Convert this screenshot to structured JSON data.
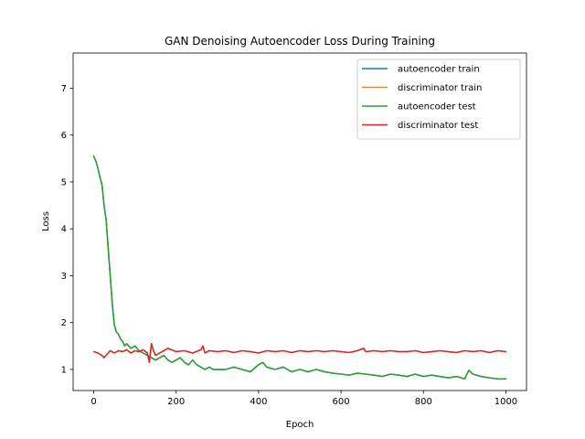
{
  "chart_data": {
    "type": "line",
    "title": "GAN Denoising Autoencoder Loss During Training",
    "xlabel": "Epoch",
    "ylabel": "Loss",
    "xlim": [
      -50,
      1050
    ],
    "ylim": [
      0.55,
      7.75
    ],
    "xticks": [
      0,
      200,
      400,
      600,
      800,
      1000
    ],
    "yticks": [
      1,
      2,
      3,
      4,
      5,
      6,
      7
    ],
    "grid": false,
    "legend_position": "top-right",
    "series": [
      {
        "name": "autoencoder train",
        "color": "#1f77b4",
        "x": [
          0,
          5,
          10,
          15,
          20,
          25,
          30,
          35,
          40,
          45,
          50,
          55,
          60,
          65,
          70,
          75,
          80,
          90,
          100,
          110,
          120,
          130,
          140,
          150,
          160,
          170,
          180,
          190,
          200,
          210,
          220,
          230,
          240,
          250,
          260,
          270,
          280,
          290,
          300,
          320,
          340,
          360,
          380,
          400,
          410,
          420,
          440,
          460,
          480,
          500,
          520,
          540,
          560,
          580,
          600,
          620,
          640,
          660,
          680,
          700,
          720,
          740,
          760,
          780,
          800,
          820,
          840,
          860,
          880,
          900,
          910,
          920,
          940,
          960,
          980,
          1000
        ],
        "y": [
          5.55,
          5.45,
          5.3,
          5.1,
          4.95,
          4.5,
          4.2,
          3.6,
          3.0,
          2.4,
          1.95,
          1.8,
          1.75,
          1.65,
          1.6,
          1.5,
          1.55,
          1.45,
          1.5,
          1.4,
          1.35,
          1.3,
          1.25,
          1.2,
          1.25,
          1.3,
          1.2,
          1.15,
          1.2,
          1.25,
          1.15,
          1.1,
          1.2,
          1.1,
          1.05,
          1.0,
          1.05,
          1.0,
          1.0,
          1.0,
          1.05,
          1.0,
          0.95,
          1.1,
          1.15,
          1.05,
          1.0,
          1.05,
          0.95,
          1.0,
          0.95,
          1.0,
          0.95,
          0.92,
          0.9,
          0.88,
          0.92,
          0.9,
          0.88,
          0.85,
          0.9,
          0.88,
          0.85,
          0.9,
          0.85,
          0.88,
          0.85,
          0.82,
          0.85,
          0.8,
          0.98,
          0.9,
          0.85,
          0.82,
          0.8,
          0.8
        ]
      },
      {
        "name": "discriminator train",
        "color": "#ff7f0e",
        "x": [
          0,
          10,
          20,
          25,
          30,
          40,
          50,
          60,
          70,
          80,
          90,
          100,
          110,
          120,
          130,
          135,
          140,
          145,
          150,
          160,
          170,
          180,
          200,
          220,
          240,
          260,
          265,
          270,
          280,
          300,
          320,
          340,
          360,
          380,
          400,
          420,
          440,
          460,
          480,
          500,
          520,
          540,
          560,
          580,
          600,
          620,
          640,
          655,
          660,
          680,
          700,
          720,
          740,
          760,
          780,
          800,
          820,
          840,
          860,
          880,
          900,
          920,
          940,
          960,
          980,
          1000
        ],
        "y": [
          1.38,
          1.35,
          1.3,
          1.25,
          1.3,
          1.4,
          1.35,
          1.4,
          1.38,
          1.42,
          1.35,
          1.4,
          1.38,
          1.42,
          1.35,
          1.15,
          1.55,
          1.4,
          1.3,
          1.35,
          1.4,
          1.45,
          1.38,
          1.4,
          1.35,
          1.42,
          1.5,
          1.35,
          1.4,
          1.38,
          1.4,
          1.36,
          1.4,
          1.38,
          1.35,
          1.4,
          1.38,
          1.4,
          1.36,
          1.4,
          1.38,
          1.4,
          1.38,
          1.4,
          1.38,
          1.36,
          1.4,
          1.45,
          1.38,
          1.4,
          1.38,
          1.4,
          1.38,
          1.38,
          1.4,
          1.36,
          1.38,
          1.4,
          1.38,
          1.36,
          1.4,
          1.38,
          1.4,
          1.36,
          1.4,
          1.38
        ]
      },
      {
        "name": "autoencoder test",
        "color": "#2ca02c",
        "x": [
          0,
          5,
          10,
          15,
          20,
          25,
          30,
          35,
          40,
          45,
          50,
          55,
          60,
          65,
          70,
          75,
          80,
          90,
          100,
          110,
          120,
          130,
          140,
          150,
          160,
          170,
          180,
          190,
          200,
          210,
          220,
          230,
          240,
          250,
          260,
          270,
          280,
          290,
          300,
          320,
          340,
          360,
          380,
          400,
          410,
          420,
          440,
          460,
          480,
          500,
          520,
          540,
          560,
          580,
          600,
          620,
          640,
          660,
          680,
          700,
          720,
          740,
          760,
          780,
          800,
          820,
          840,
          860,
          880,
          900,
          910,
          920,
          940,
          960,
          980,
          1000
        ],
        "y": [
          5.55,
          5.45,
          5.3,
          5.1,
          4.95,
          4.5,
          4.2,
          3.6,
          3.0,
          2.4,
          1.95,
          1.8,
          1.75,
          1.65,
          1.6,
          1.5,
          1.55,
          1.45,
          1.5,
          1.4,
          1.35,
          1.3,
          1.25,
          1.2,
          1.25,
          1.3,
          1.2,
          1.15,
          1.2,
          1.25,
          1.15,
          1.1,
          1.2,
          1.1,
          1.05,
          1.0,
          1.05,
          1.0,
          1.0,
          1.0,
          1.05,
          1.0,
          0.95,
          1.1,
          1.15,
          1.05,
          1.0,
          1.05,
          0.95,
          1.0,
          0.95,
          1.0,
          0.95,
          0.92,
          0.9,
          0.88,
          0.92,
          0.9,
          0.88,
          0.85,
          0.9,
          0.88,
          0.85,
          0.9,
          0.85,
          0.88,
          0.85,
          0.82,
          0.85,
          0.8,
          0.98,
          0.9,
          0.85,
          0.82,
          0.8,
          0.8
        ]
      },
      {
        "name": "discriminator test",
        "color": "#d62728",
        "x": [
          0,
          10,
          20,
          25,
          30,
          40,
          50,
          60,
          70,
          80,
          90,
          100,
          110,
          120,
          130,
          135,
          140,
          145,
          150,
          160,
          170,
          180,
          200,
          220,
          240,
          260,
          265,
          270,
          280,
          300,
          320,
          340,
          360,
          380,
          400,
          420,
          440,
          460,
          480,
          500,
          520,
          540,
          560,
          580,
          600,
          620,
          640,
          655,
          660,
          680,
          700,
          720,
          740,
          760,
          780,
          800,
          820,
          840,
          860,
          880,
          900,
          920,
          940,
          960,
          980,
          1000
        ],
        "y": [
          1.38,
          1.35,
          1.3,
          1.25,
          1.3,
          1.4,
          1.35,
          1.4,
          1.38,
          1.42,
          1.35,
          1.4,
          1.38,
          1.42,
          1.35,
          1.15,
          1.55,
          1.4,
          1.3,
          1.35,
          1.4,
          1.45,
          1.38,
          1.4,
          1.35,
          1.42,
          1.5,
          1.35,
          1.4,
          1.38,
          1.4,
          1.36,
          1.4,
          1.38,
          1.35,
          1.4,
          1.38,
          1.4,
          1.36,
          1.4,
          1.38,
          1.4,
          1.38,
          1.4,
          1.38,
          1.36,
          1.4,
          1.45,
          1.38,
          1.4,
          1.38,
          1.4,
          1.38,
          1.38,
          1.4,
          1.36,
          1.38,
          1.4,
          1.38,
          1.36,
          1.4,
          1.38,
          1.4,
          1.36,
          1.4,
          1.38
        ]
      }
    ]
  }
}
